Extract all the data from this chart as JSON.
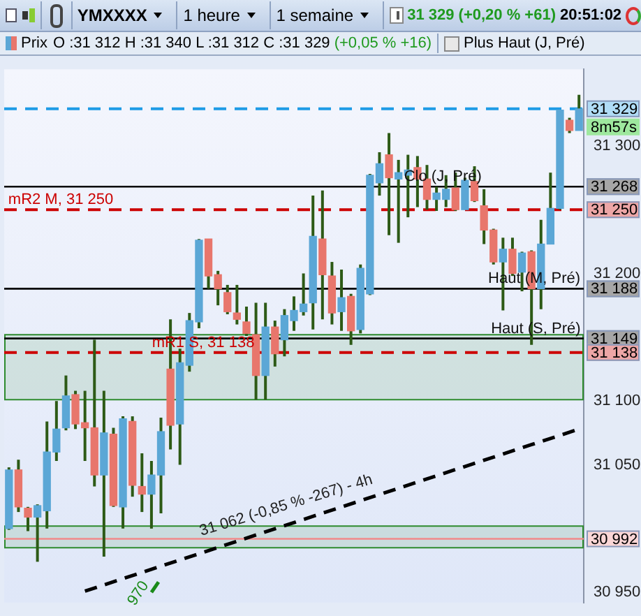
{
  "chart_data": {
    "type": "candlestick",
    "title": "YMXXXX",
    "categories": [
      null,
      null,
      null,
      null,
      null,
      null,
      null,
      null,
      null,
      null,
      null,
      null,
      null,
      null,
      null,
      null,
      null,
      null,
      null,
      null,
      null,
      null,
      null,
      null,
      null,
      null,
      null,
      null,
      null,
      null,
      null,
      null,
      null,
      null,
      null,
      null,
      null,
      null,
      null,
      null,
      null,
      null,
      null,
      null,
      null,
      null,
      null,
      null,
      null,
      null,
      null,
      null,
      null,
      null,
      null,
      null,
      null,
      null,
      null,
      null,
      null
    ],
    "ohlc": [
      [
        31000,
        31048,
        30999,
        31046
      ],
      [
        31046,
        31054,
        31013,
        31017
      ],
      [
        31016,
        31017,
        30998,
        31009
      ],
      [
        31009,
        31019,
        30974,
        31018
      ],
      [
        31014,
        31084,
        31000,
        31060
      ],
      [
        31060,
        31100,
        31053,
        31078
      ],
      [
        31079,
        31120,
        31077,
        31104
      ],
      [
        31105,
        31108,
        31078,
        31082
      ],
      [
        31083,
        31108,
        31053,
        31079
      ],
      [
        31079,
        31148,
        31033,
        31042
      ],
      [
        31042,
        31108,
        30978,
        31075
      ],
      [
        31074,
        31079,
        31017,
        31018
      ],
      [
        31017,
        31088,
        31000,
        31086
      ],
      [
        31084,
        31088,
        31025,
        31034
      ],
      [
        31033,
        31059,
        31013,
        31027
      ],
      [
        31027,
        31053,
        31000,
        31042
      ],
      [
        31042,
        31087,
        31012,
        31076
      ],
      [
        31125,
        31164,
        31062,
        31081
      ],
      [
        31082,
        31141,
        31050,
        31130
      ],
      [
        31128,
        31169,
        31123,
        31163
      ],
      [
        31162,
        31227,
        31157,
        31226
      ],
      [
        31227,
        31227,
        31188,
        31198
      ],
      [
        31199,
        31202,
        31175,
        31188
      ],
      [
        31185,
        31191,
        31168,
        31170
      ],
      [
        31169,
        31191,
        31160,
        31164
      ],
      [
        31162,
        31174,
        31151,
        31153
      ],
      [
        31152,
        31177,
        31101,
        31120
      ],
      [
        31120,
        31177,
        31101,
        31158
      ],
      [
        31158,
        31163,
        31127,
        31137
      ],
      [
        31148,
        31172,
        31135,
        31167
      ],
      [
        31163,
        31182,
        31155,
        31171
      ],
      [
        31170,
        31200,
        31167,
        31176
      ],
      [
        31177,
        31261,
        31156,
        31229
      ],
      [
        31227,
        31265,
        31164,
        31199
      ],
      [
        31198,
        31209,
        31160,
        31169
      ],
      [
        31170,
        31203,
        31155,
        31181
      ],
      [
        31182,
        31184,
        31144,
        31155
      ],
      [
        31156,
        31207,
        31153,
        31204
      ],
      [
        31184,
        31278,
        31183,
        31277
      ],
      [
        31271,
        31295,
        31261,
        31286
      ],
      [
        31293,
        31310,
        31230,
        31275
      ],
      [
        31274,
        31289,
        31224,
        31279
      ],
      [
        31277,
        31293,
        31244,
        31281
      ],
      [
        31283,
        31292,
        31252,
        31274
      ],
      [
        31274,
        31285,
        31250,
        31258
      ],
      [
        31258,
        31268,
        31249,
        31263
      ],
      [
        31258,
        31277,
        31252,
        31266
      ],
      [
        31267,
        31279,
        31249,
        31250
      ],
      [
        31250,
        31275,
        31250,
        31273
      ],
      [
        31272,
        31284,
        31256,
        31257
      ],
      [
        31253,
        31266,
        31223,
        31234
      ],
      [
        31234,
        31235,
        31207,
        31209
      ],
      [
        31209,
        31228,
        31171,
        31219
      ],
      [
        31219,
        31228,
        31198,
        31200
      ],
      [
        31201,
        31217,
        31186,
        31216
      ],
      [
        31217,
        31218,
        31144,
        31188
      ],
      [
        31188,
        31242,
        31172,
        31223
      ],
      [
        31223,
        31279,
        31223,
        31251
      ],
      [
        31251,
        31328,
        31250,
        31328
      ],
      [
        31320,
        31322,
        31310,
        31312
      ],
      [
        31312,
        31340,
        31312,
        31329
      ]
    ],
    "colors": [
      "#5ba7d6",
      "#e8766c",
      "#e8766c",
      "#5ba7d6",
      "#5ba7d6",
      "#5ba7d6",
      "#5ba7d6",
      "#e8766c",
      "#e8766c",
      "#e8766c",
      "#5ba7d6",
      "#e8766c",
      "#5ba7d6",
      "#e8766c",
      "#e8766c",
      "#5ba7d6",
      "#5ba7d6",
      "#e8766c",
      "#5ba7d6",
      "#5ba7d6",
      "#5ba7d6",
      "#e8766c",
      "#e8766c",
      "#e8766c",
      "#e8766c",
      "#e8766c",
      "#e8766c",
      "#5ba7d6",
      "#e8766c",
      "#5ba7d6",
      "#5ba7d6",
      "#5ba7d6",
      "#5ba7d6",
      "#e8766c",
      "#e8766c",
      "#5ba7d6",
      "#e8766c",
      "#5ba7d6",
      "#5ba7d6",
      "#5ba7d6",
      "#e8766c",
      "#5ba7d6",
      "#5ba7d6",
      "#e8766c",
      "#e8766c",
      "#5ba7d6",
      "#5ba7d6",
      "#e8766c",
      "#5ba7d6",
      "#e8766c",
      "#e8766c",
      "#e8766c",
      "#5ba7d6",
      "#e8766c",
      "#5ba7d6",
      "#e8766c",
      "#5ba7d6",
      "#5ba7d6",
      "#5ba7d6",
      "#e8766c",
      "#5ba7d6"
    ],
    "color": "#2d5a16",
    "series": [
      {
        "type": "line",
        "values": [
          null,
          null,
          null,
          null,
          null,
          null,
          null,
          null,
          30951,
          null,
          null,
          null,
          null,
          null,
          null,
          null,
          null,
          null,
          null,
          null,
          null,
          null,
          null,
          null,
          null,
          null,
          null,
          null,
          null,
          null,
          null,
          null,
          null,
          null,
          null,
          null,
          null,
          null,
          null,
          null,
          null,
          null,
          null,
          null,
          null,
          null,
          null,
          null,
          null,
          null,
          null,
          null,
          null,
          null,
          null,
          null,
          null,
          null,
          null,
          null,
          31078
        ],
        "color": "#000000",
        "line_style": "dashed"
      },
      {
        "type": "line",
        "values": [
          null,
          null,
          null,
          null,
          null,
          null,
          null,
          null,
          null,
          null,
          null,
          null,
          null,
          null,
          null,
          30950,
          30961,
          null,
          null,
          null,
          null,
          null,
          null,
          null,
          null,
          null,
          null,
          null,
          null,
          null,
          null,
          null,
          null,
          null,
          null,
          null,
          null,
          null,
          null,
          null,
          null,
          null,
          null,
          null,
          null,
          null,
          null,
          null,
          null,
          null,
          null,
          null,
          null,
          null,
          null,
          null,
          null,
          null,
          null,
          null,
          null
        ],
        "color": "#1a8a1a",
        "line_style": "dashed"
      }
    ],
    "ylim": [
      30942,
      31360
    ],
    "yticks": [
      {
        "value": 30950,
        "label": "30 950"
      },
      {
        "value": 31050,
        "label": "31 050"
      },
      {
        "value": 31100,
        "label": "31 100"
      },
      {
        "value": 31200,
        "label": "31 200"
      },
      {
        "value": 31300,
        "label": "31 300"
      }
    ],
    "tick_labels": "y",
    "legend": false,
    "ref_lines": [
      {
        "axis": "y",
        "value": 31329,
        "label": "31 329",
        "color": "#1e9be6",
        "line_style": "dashed"
      },
      {
        "axis": "y",
        "value": 31268,
        "label": "31 268",
        "color": "#000000",
        "line_style": "solid"
      },
      {
        "axis": "y",
        "value": 31250,
        "label": "31 250",
        "color": "#cc0000",
        "line_style": "dashed"
      },
      {
        "axis": "y",
        "value": 31188,
        "label": "31 188",
        "color": "#000000",
        "line_style": "solid"
      },
      {
        "axis": "y",
        "value": 31149,
        "label": "31 149",
        "color": "#000000",
        "line_style": "solid"
      },
      {
        "axis": "y",
        "value": 31138,
        "label": "31 138",
        "color": "#cc0000",
        "line_style": "dashed"
      },
      {
        "axis": "y",
        "value": 30992,
        "label": "30 992",
        "color": "#f08a8a",
        "line_style": "solid"
      }
    ],
    "bands": [
      {
        "axis": "y",
        "from": 31101,
        "to": 31152,
        "color": "#2e8b2e"
      },
      {
        "axis": "y",
        "from": 30985,
        "to": 31002,
        "color": "#2e8b2e"
      }
    ],
    "annotations": [
      "1 heure",
      "1 semaine",
      "31 329 (+0,20 % +61)",
      "20:51:02",
      "Prix",
      "O :31 312 H :31 340 L :31 312 C :31 329",
      "(+0,05 % +16)",
      "Plus Haut (J, Pré)",
      "8m57s",
      {
        "text": "mR2 M, 31 250",
        "y": 31250
      },
      {
        "text": "Clo (J, Pré)",
        "y": 31268
      },
      {
        "text": "Haut (M, Pré)",
        "y": 31188
      },
      {
        "text": "Haut (S, Pré)",
        "y": 31149
      },
      {
        "text": "mR1 S, 31 138",
        "y": 31138
      },
      {
        "text": "31 062 (-0,85 % -267) - 4h",
        "y": 30990
      },
      "970"
    ]
  }
}
